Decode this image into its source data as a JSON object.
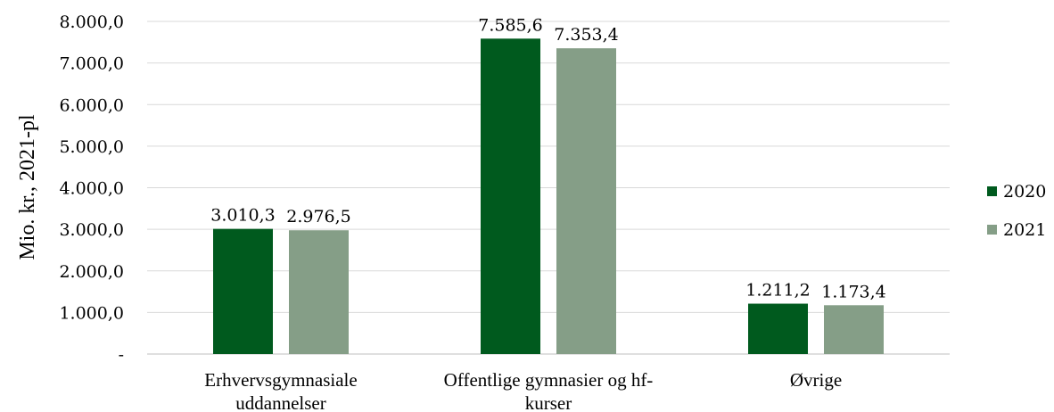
{
  "chart_data": {
    "type": "bar",
    "title": "",
    "ylabel": "Mio. kr., 2021-pl",
    "xlabel": "",
    "ylim": [
      0,
      8000
    ],
    "yticks": [
      {
        "value": 0,
        "label": "-"
      },
      {
        "value": 1000,
        "label": "1.000,0"
      },
      {
        "value": 2000,
        "label": "2.000,0"
      },
      {
        "value": 3000,
        "label": "3.000,0"
      },
      {
        "value": 4000,
        "label": "4.000,0"
      },
      {
        "value": 5000,
        "label": "5.000,0"
      },
      {
        "value": 6000,
        "label": "6.000,0"
      },
      {
        "value": 7000,
        "label": "7.000,0"
      },
      {
        "value": 8000,
        "label": "8.000,0"
      }
    ],
    "categories": [
      [
        "Erhvervsgymnasiale",
        "uddannelser"
      ],
      [
        "Offentlige gymnasier og hf-",
        "kurser"
      ],
      [
        "Øvrige"
      ]
    ],
    "series": [
      {
        "name": "2020",
        "color": "#005a1e",
        "values": [
          3010.3,
          7585.6,
          1211.2
        ],
        "labels": [
          "3.010,3",
          "7.585,6",
          "1.211,2"
        ]
      },
      {
        "name": "2021",
        "color": "#859e87",
        "values": [
          2976.5,
          7353.4,
          1173.4
        ],
        "labels": [
          "2.976,5",
          "7.353,4",
          "1.173,4"
        ]
      }
    ],
    "grid": true,
    "legend": "right"
  }
}
